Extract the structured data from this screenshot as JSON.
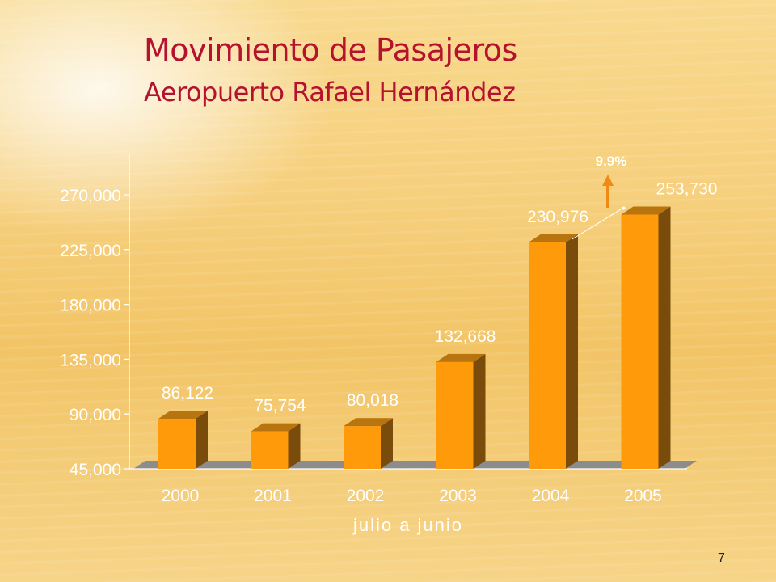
{
  "slide": {
    "title": "Movimiento de Pasajeros",
    "subtitle": "Aeropuerto Rafael Hernández",
    "page_number": "7"
  },
  "chart_data": {
    "type": "bar",
    "categories": [
      "2000",
      "2001",
      "2002",
      "2003",
      "2004",
      "2005"
    ],
    "values": [
      86122,
      75754,
      80018,
      132668,
      230976,
      253730
    ],
    "value_labels": [
      "86,122",
      "75,754",
      "80,018",
      "132,668",
      "230,976",
      "253,730"
    ],
    "yticks": [
      "45,000",
      "90,000",
      "135,000",
      "180,000",
      "225,000",
      "270,000"
    ],
    "ytick_values": [
      45000,
      90000,
      135000,
      180000,
      225000,
      270000
    ],
    "ylim": [
      45000,
      300000
    ],
    "xlabel": "julio a junio",
    "annotation": {
      "text": "9.9%",
      "from_category": "2004",
      "to_category": "2005",
      "arrow": "up"
    },
    "style": "3d-bar",
    "grid": false,
    "legend": "none",
    "colors": {
      "bar_front": "#ff9a0a",
      "bar_side": "#7a4c0c",
      "bar_top": "#b8740f",
      "floor": "#8c8c8c",
      "arrow": "#f08a12",
      "text": "#ffffff"
    }
  }
}
